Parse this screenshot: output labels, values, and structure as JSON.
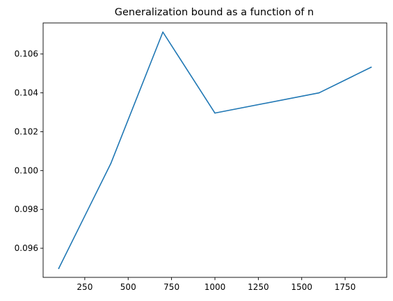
{
  "chart_data": {
    "type": "line",
    "title": "Generalization bound as a function of n",
    "xlabel": "",
    "ylabel": "",
    "x": [
      100,
      400,
      700,
      1000,
      1600,
      1900
    ],
    "series": [
      {
        "values": [
          0.09496,
          0.10036,
          0.10713,
          0.10296,
          0.104,
          0.10532
        ],
        "color": "#1f77b4"
      }
    ],
    "xlim": [
      10,
      1990
    ],
    "ylim": [
      0.0945,
      0.1076
    ],
    "xticks": [
      250,
      500,
      750,
      1000,
      1250,
      1500,
      1750
    ],
    "xtick_labels": [
      "250",
      "500",
      "750",
      "1000",
      "1250",
      "1500",
      "1750"
    ],
    "yticks": [
      0.096,
      0.098,
      0.1,
      0.102,
      0.104,
      0.106
    ],
    "ytick_labels": [
      "0.096",
      "0.098",
      "0.100",
      "0.102",
      "0.104",
      "0.106"
    ],
    "grid": false,
    "legend": "none"
  }
}
